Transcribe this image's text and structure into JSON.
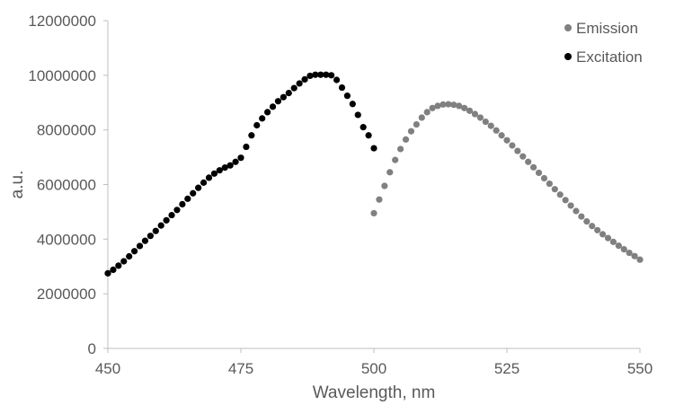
{
  "chart_data": {
    "type": "scatter",
    "title": "",
    "xlabel": "Wavelength, nm",
    "ylabel": "a.u.",
    "xlim": [
      450,
      550
    ],
    "ylim": [
      0,
      12000000
    ],
    "x_ticks": [
      450,
      475,
      500,
      525,
      550
    ],
    "x_tick_labels": [
      "450",
      "475",
      "500",
      "525",
      "550"
    ],
    "y_ticks": [
      0,
      2000000,
      4000000,
      6000000,
      8000000,
      10000000,
      12000000
    ],
    "y_tick_labels": [
      "0",
      "2000000",
      "4000000",
      "6000000",
      "8000000",
      "10000000",
      "12000000"
    ],
    "grid": false,
    "legend_position": "top-right",
    "series": [
      {
        "name": "Emission",
        "color": "#808080",
        "x": [
          500,
          501,
          502,
          503,
          504,
          505,
          506,
          507,
          508,
          509,
          510,
          511,
          512,
          513,
          514,
          515,
          516,
          517,
          518,
          519,
          520,
          521,
          522,
          523,
          524,
          525,
          526,
          527,
          528,
          529,
          530,
          531,
          532,
          533,
          534,
          535,
          536,
          537,
          538,
          539,
          540,
          541,
          542,
          543,
          544,
          545,
          546,
          547,
          548,
          549,
          550
        ],
        "y": [
          4950000,
          5450000,
          5950000,
          6450000,
          6900000,
          7300000,
          7650000,
          7950000,
          8200000,
          8450000,
          8650000,
          8800000,
          8880000,
          8930000,
          8940000,
          8920000,
          8880000,
          8800000,
          8700000,
          8580000,
          8450000,
          8300000,
          8150000,
          7980000,
          7800000,
          7620000,
          7430000,
          7230000,
          7030000,
          6830000,
          6630000,
          6430000,
          6230000,
          6030000,
          5830000,
          5630000,
          5430000,
          5230000,
          5030000,
          4830000,
          4650000,
          4480000,
          4330000,
          4180000,
          4040000,
          3900000,
          3760000,
          3630000,
          3500000,
          3380000,
          3250000
        ]
      },
      {
        "name": "Excitation",
        "color": "#000000",
        "x": [
          450,
          451,
          452,
          453,
          454,
          455,
          456,
          457,
          458,
          459,
          460,
          461,
          462,
          463,
          464,
          465,
          466,
          467,
          468,
          469,
          470,
          471,
          472,
          473,
          474,
          475,
          476,
          477,
          478,
          479,
          480,
          481,
          482,
          483,
          484,
          485,
          486,
          487,
          488,
          489,
          490,
          491,
          492,
          493,
          494,
          495,
          496,
          497,
          498,
          499,
          500
        ],
        "y": [
          2750000,
          2880000,
          3030000,
          3190000,
          3370000,
          3560000,
          3750000,
          3940000,
          4120000,
          4300000,
          4500000,
          4690000,
          4880000,
          5070000,
          5280000,
          5480000,
          5680000,
          5880000,
          6070000,
          6250000,
          6400000,
          6520000,
          6620000,
          6700000,
          6830000,
          6980000,
          7380000,
          7800000,
          8170000,
          8420000,
          8650000,
          8850000,
          9050000,
          9200000,
          9350000,
          9530000,
          9700000,
          9850000,
          9980000,
          10020000,
          10020000,
          10020000,
          10000000,
          9830000,
          9550000,
          9250000,
          8950000,
          8550000,
          8100000,
          7800000,
          7330000
        ]
      }
    ]
  }
}
